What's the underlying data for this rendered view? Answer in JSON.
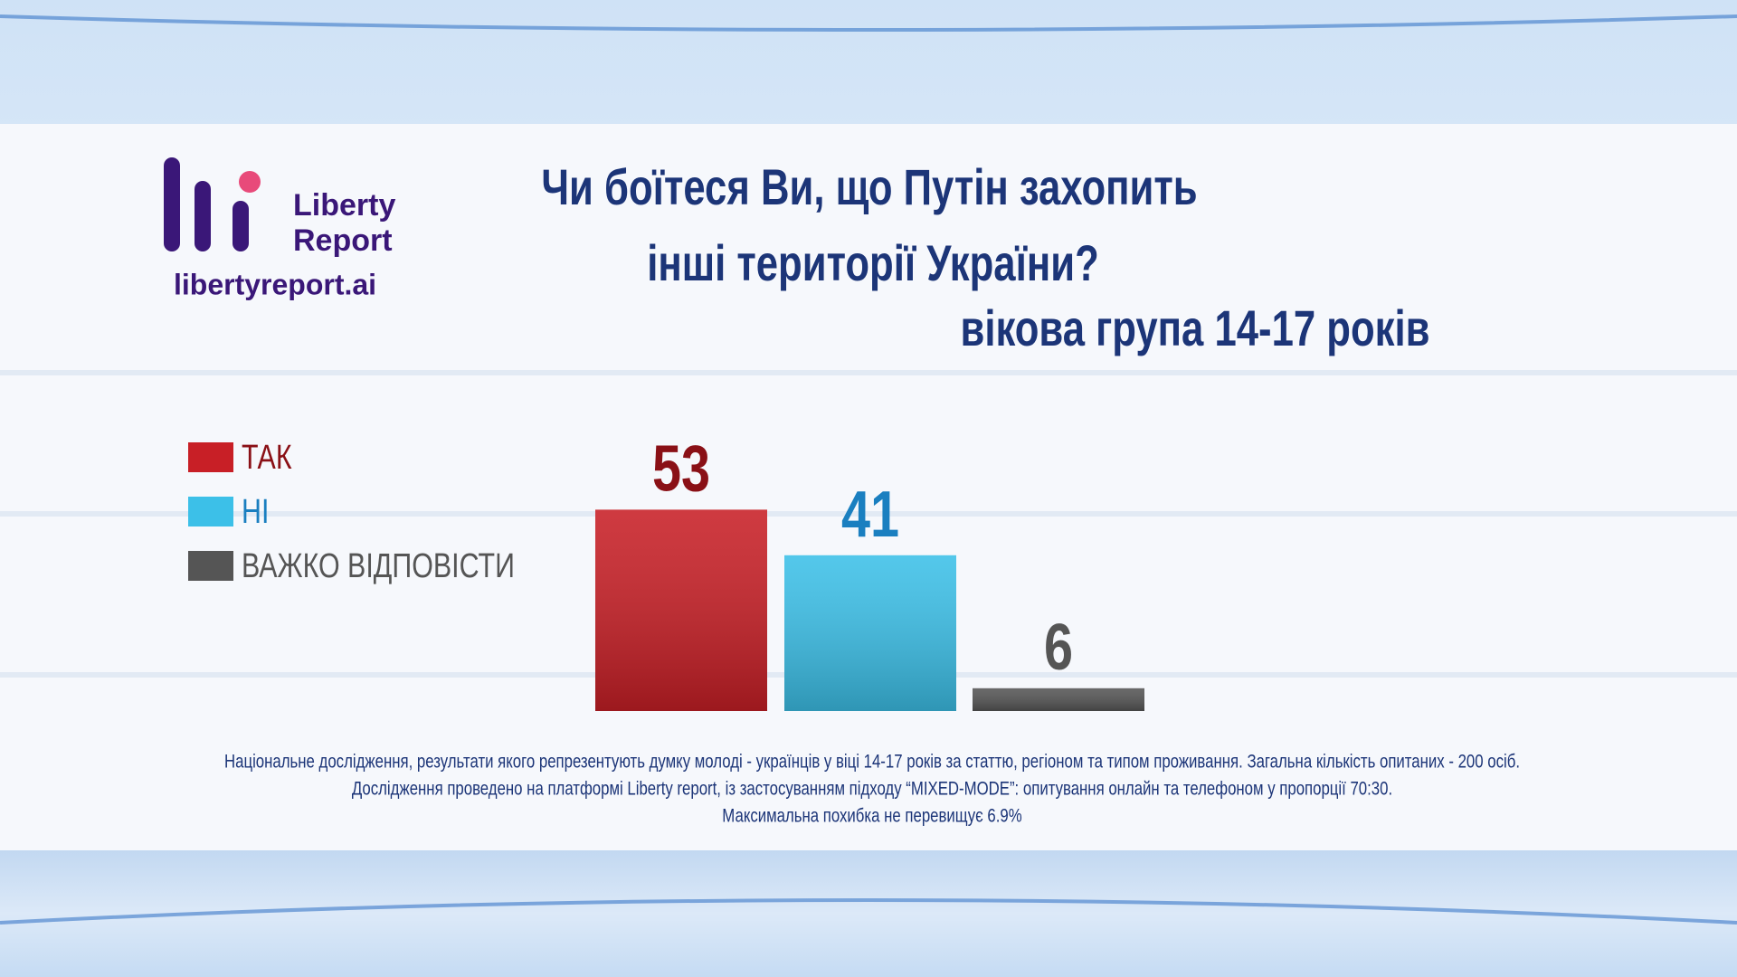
{
  "logo": {
    "name": [
      "Liberty",
      "Report"
    ],
    "url": "libertyreport.ai"
  },
  "chart_data": {
    "type": "bar",
    "title": [
      "Чи боїтеся Ви, що Путін захопить",
      "інші території України?"
    ],
    "subtitle": "вікова група 14-17 років",
    "categories": [
      "ТАК",
      "НІ",
      "ВАЖКО ВІДПОВІСТИ"
    ],
    "values": [
      53,
      41,
      6
    ],
    "colors": [
      "#c81f26",
      "#3cc0e8",
      "#555555"
    ],
    "label_colors": [
      "#8a1016",
      "#1a7fc0",
      "#555555"
    ],
    "notes": [
      "Національне  дослідження, результати якого репрезентують думку молоді -  українців у віці 14-17 років за статтю, регіоном та типом проживання. Загальна кількість опитаних - 200 осіб.",
      "Дослідження проведено на платформі Liberty report, із застосуванням підходу “MIXED-MODE”: опитування онлайн та телефоном у пропорції 70:30.",
      "Максимальна похибка не перевищує 6.9%"
    ]
  }
}
